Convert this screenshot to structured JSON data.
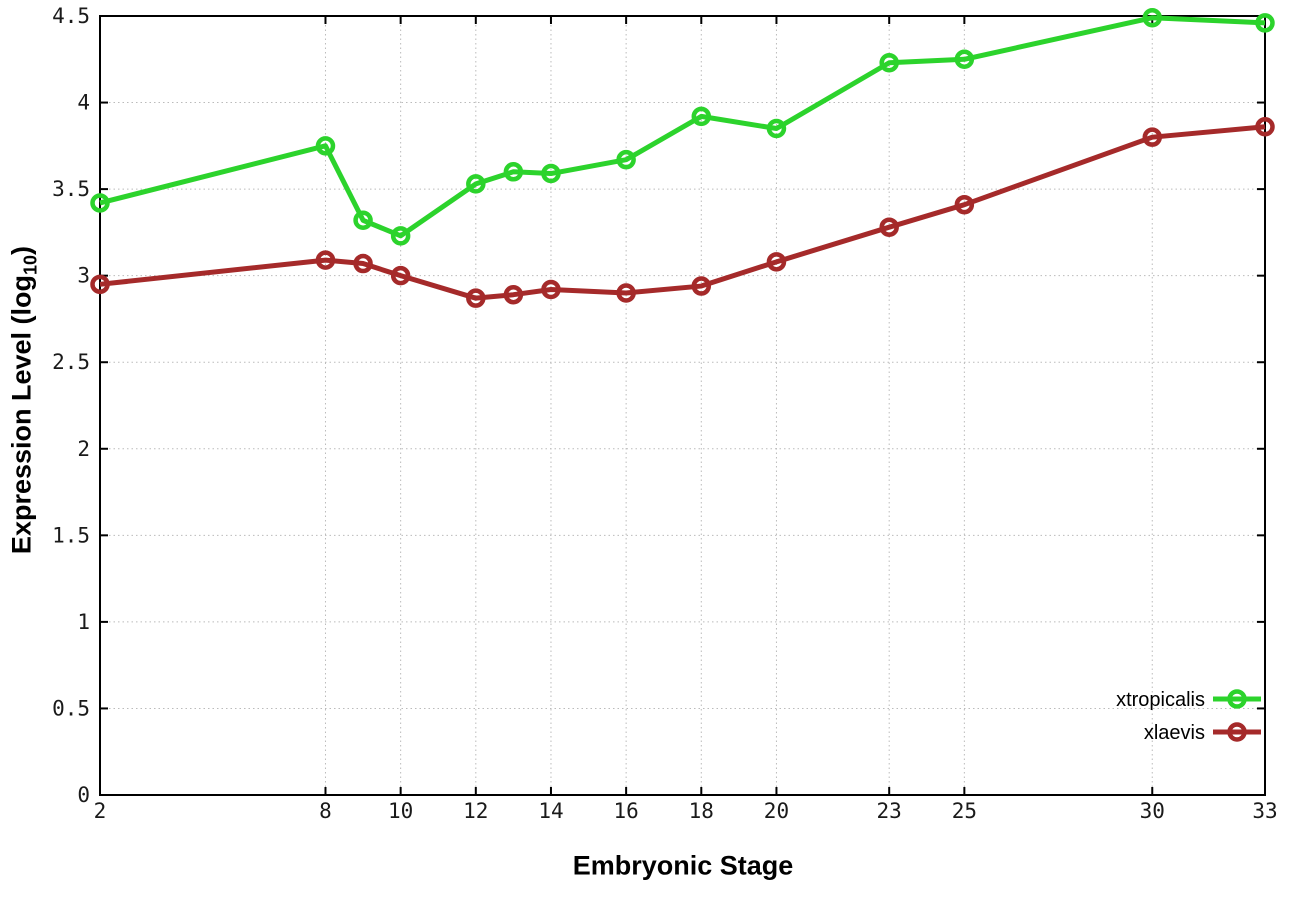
{
  "figure": {
    "xlabel": "Embryonic Stage",
    "ylabel": "Expression Level (log10)",
    "ylabel_prefix": "Expression Level (log",
    "ylabel_sub": "10",
    "ylabel_suffix": ")",
    "background_color": "#ffffff"
  },
  "chart_data": {
    "type": "line",
    "title": "",
    "xlabel": "Embryonic Stage",
    "ylabel": "Expression Level (log10)",
    "xlim": [
      2,
      33
    ],
    "ylim": [
      0,
      4.5
    ],
    "xticks": [
      2,
      8,
      10,
      12,
      14,
      16,
      18,
      20,
      23,
      25,
      30,
      33
    ],
    "yticks": [
      0,
      0.5,
      1,
      1.5,
      2,
      2.5,
      3,
      3.5,
      4,
      4.5
    ],
    "grid": true,
    "grid_style": "dotted",
    "legend_position": "bottom-right",
    "x": [
      2,
      8,
      9,
      10,
      12,
      13,
      14,
      16,
      18,
      20,
      23,
      25,
      30,
      33
    ],
    "series": [
      {
        "name": "xtropicalis",
        "color": "#2cd32c",
        "marker": "open-circle",
        "values": [
          3.42,
          3.75,
          3.32,
          3.23,
          3.53,
          3.6,
          3.59,
          3.67,
          3.92,
          3.85,
          4.23,
          4.25,
          4.49,
          4.46
        ]
      },
      {
        "name": "xlaevis",
        "color": "#a52a2a",
        "marker": "open-circle",
        "values": [
          2.95,
          3.09,
          3.07,
          3.0,
          2.87,
          2.89,
          2.92,
          2.9,
          2.94,
          3.08,
          3.28,
          3.41,
          3.8,
          3.86
        ]
      }
    ],
    "style": {
      "grid_color": "#bbbbbb",
      "axis_color": "#000000",
      "tick_label_color": "#1a1a1a",
      "line_width": 5,
      "marker_radius": 7.5,
      "marker_stroke_width": 4.5
    }
  }
}
